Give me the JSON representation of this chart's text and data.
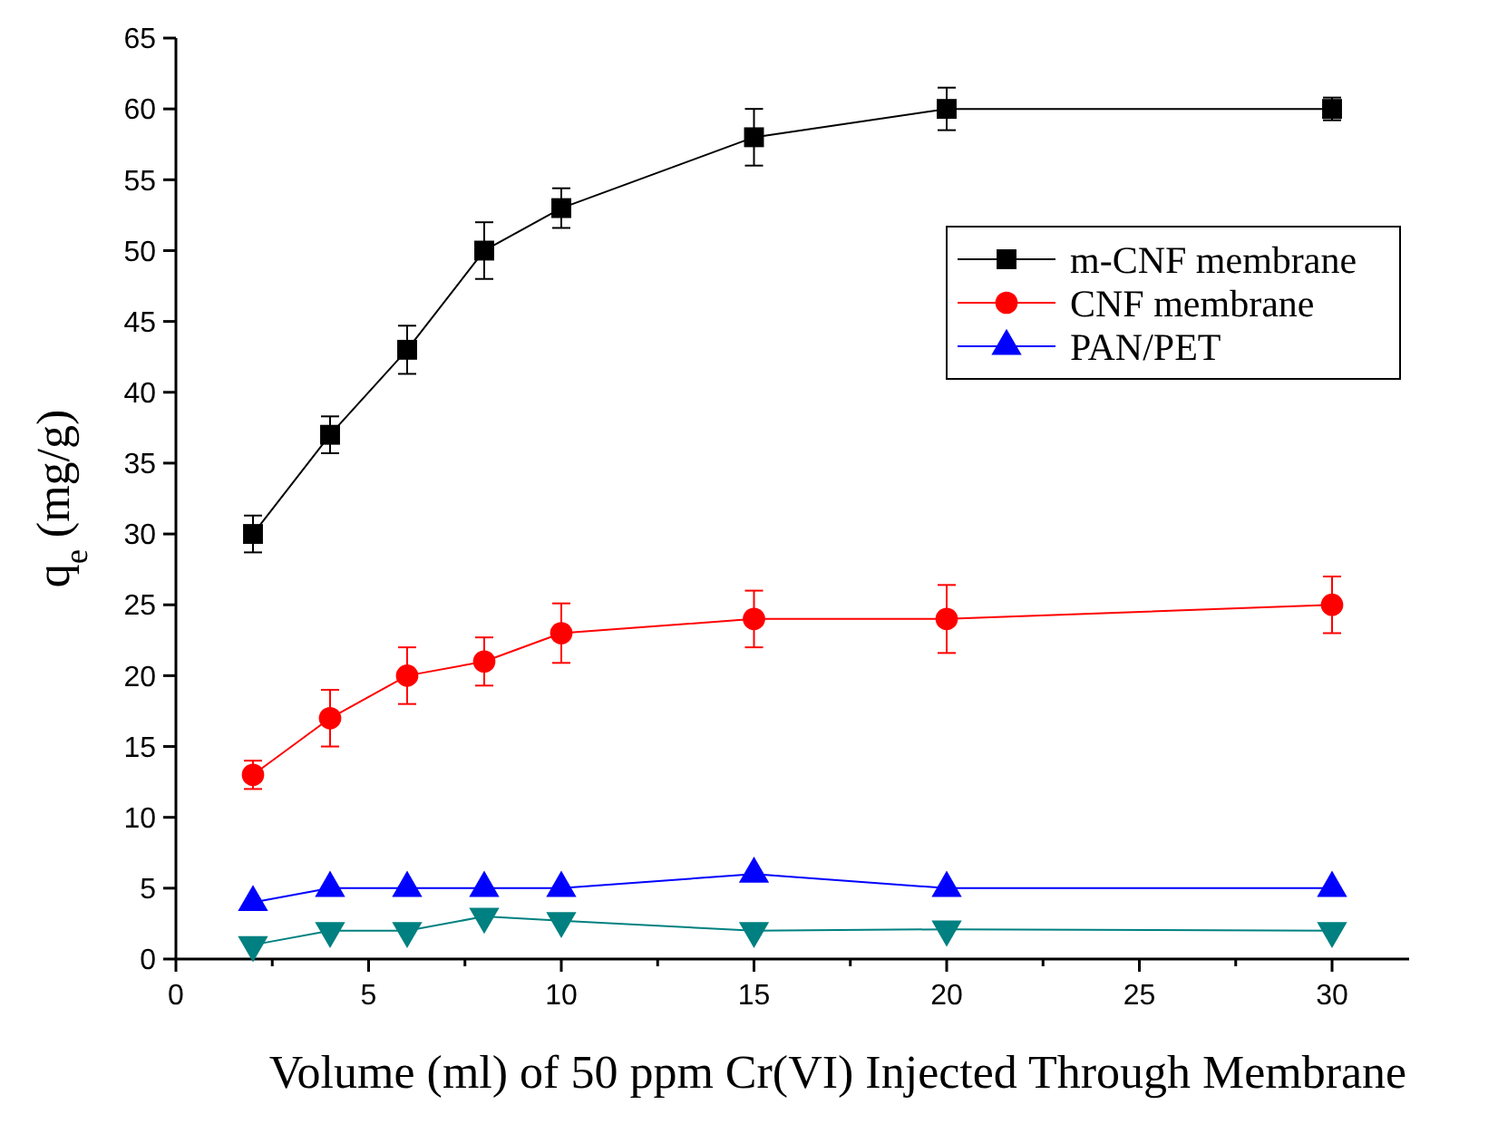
{
  "chart_data": {
    "type": "line",
    "xlabel": "Volume (ml) of 50 ppm Cr(VI) Injected Through Membrane",
    "ylabel": "q$_{e}$ (mg/g)",
    "x": [
      2,
      4,
      6,
      8,
      10,
      15,
      20,
      30
    ],
    "xlim": [
      0,
      32
    ],
    "ylim": [
      0,
      65
    ],
    "xticks": [
      0,
      {
        "value": 2.5,
        "label": null
      },
      5,
      {
        "value": 7.5,
        "label": null
      },
      10,
      {
        "value": 12.5,
        "label": null
      },
      15,
      {
        "value": 17.5,
        "label": null
      },
      20,
      {
        "value": 22.5,
        "label": null
      },
      25,
      {
        "value": 27.5,
        "label": null
      },
      30
    ],
    "yticks": [
      0,
      5,
      10,
      15,
      20,
      25,
      30,
      35,
      40,
      45,
      50,
      55,
      60,
      65
    ],
    "legend": "top right",
    "grid": false,
    "line_style": "solid",
    "series": [
      {
        "name": "m-CNF membrane",
        "color": "#000000",
        "marker": "square",
        "values": [
          30,
          37,
          43,
          50,
          53,
          58,
          60,
          60
        ],
        "errors": [
          1.3,
          1.3,
          1.7,
          2,
          1.4,
          2,
          1.5,
          0.8
        ]
      },
      {
        "name": "CNF membrane",
        "color": "#ff0000",
        "marker": "circle",
        "values": [
          13,
          17,
          20,
          21,
          23,
          24,
          24,
          25
        ],
        "errors": [
          1,
          2,
          2,
          1.7,
          2.1,
          2,
          2.4,
          2
        ]
      },
      {
        "name": "PAN/PET",
        "color": "#0000ff",
        "marker": "triangle",
        "values": [
          4,
          5,
          5,
          5,
          5,
          6,
          5,
          5
        ]
      },
      {
        "color": "#008080",
        "marker": "triangle-down",
        "values": [
          1,
          2,
          2,
          3,
          2.7,
          2,
          2.1,
          2
        ]
      }
    ]
  }
}
